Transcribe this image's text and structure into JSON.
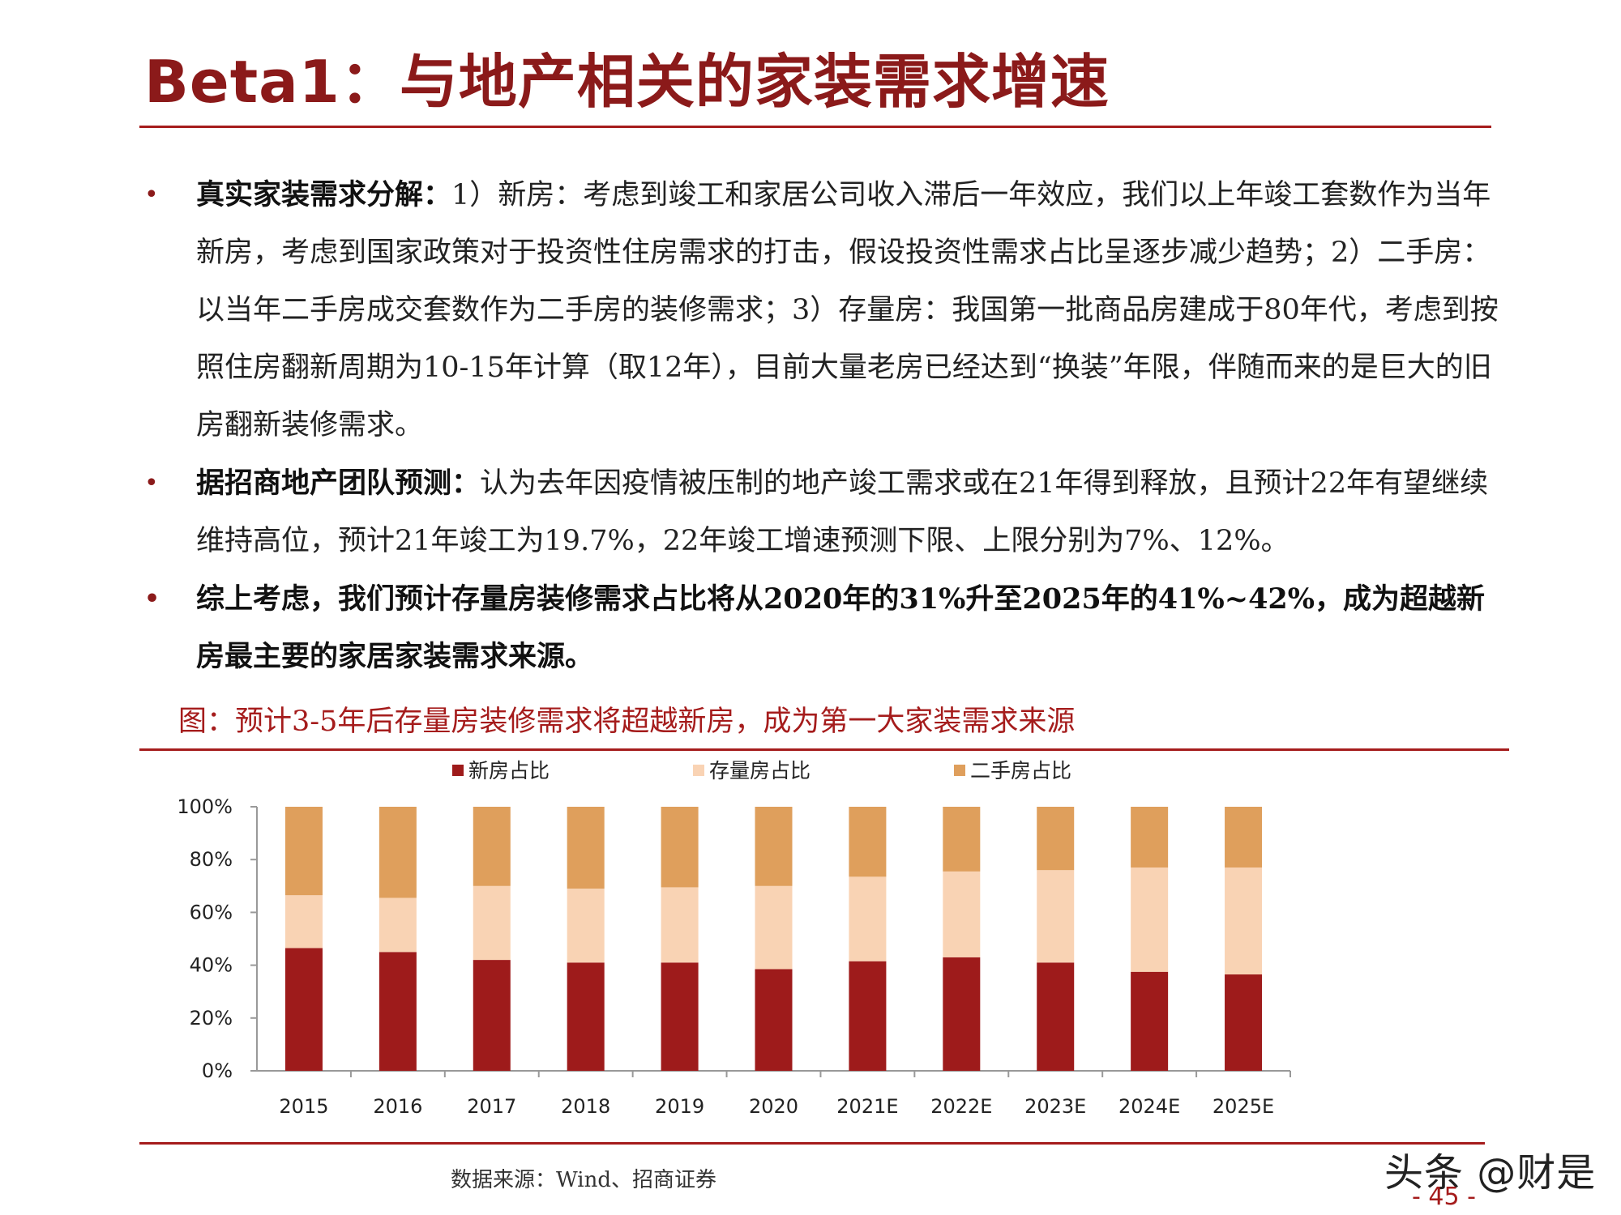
{
  "page": {
    "title": "Beta1：与地产相关的家装需求增速",
    "page_number": "- 45 -",
    "watermark": "头条 @财是"
  },
  "bullets": [
    {
      "lead": "真实家装需求分解：",
      "text": "1）新房：考虑到竣工和家居公司收入滞后一年效应，我们以上年竣工套数作为当年新房，考虑到国家政策对于投资性住房需求的打击，假设投资性需求占比呈逐步减少趋势；2）二手房：以当年二手房成交套数作为二手房的装修需求；3）存量房：我国第一批商品房建成于80年代，考虑到按照住房翻新周期为10-15年计算（取12年），目前大量老房已经达到“换装”年限，伴随而来的是巨大的旧房翻新装修需求。"
    },
    {
      "lead": "据招商地产团队预测：",
      "text": "认为去年因疫情被压制的地产竣工需求或在21年得到释放，且预计22年有望继续维持高位，预计21年竣工为19.7%，22年竣工增速预测下限、上限分别为7%、12%。"
    },
    {
      "lead": "",
      "text": "综上考虑，我们预计存量房装修需求占比将从2020年的31%升至2025年的41%~42%，成为超越新房最主要的家居家装需求来源。"
    }
  ],
  "figure": {
    "caption": "图：预计3-5年后存量房装修需求将超越新房，成为第一大家装需求来源",
    "source": "数据来源：Wind、招商证券"
  },
  "chart_data": {
    "type": "bar",
    "stacked": true,
    "title": "",
    "xlabel": "",
    "ylabel": "",
    "ylim": [
      0,
      100
    ],
    "yticks": [
      "0%",
      "20%",
      "40%",
      "60%",
      "80%",
      "100%"
    ],
    "legend_position": "top",
    "categories": [
      "2015",
      "2016",
      "2017",
      "2018",
      "2019",
      "2020",
      "2021E",
      "2022E",
      "2023E",
      "2024E",
      "2025E"
    ],
    "series": [
      {
        "name": "新房占比",
        "color": "#9e1b1b",
        "values": [
          46.5,
          45,
          42,
          41,
          41,
          38.5,
          41.5,
          43,
          41,
          37.5,
          36.5
        ]
      },
      {
        "name": "存量房占比",
        "color": "#f9d3b4",
        "values": [
          20,
          20.5,
          28,
          28,
          28.5,
          31.5,
          32,
          32.5,
          35,
          39.5,
          40.5
        ]
      },
      {
        "name": "二手房占比",
        "color": "#df9f5c",
        "values": [
          33.5,
          34.5,
          30,
          31,
          30.5,
          30,
          26.5,
          24.5,
          24,
          23,
          23
        ]
      }
    ]
  }
}
